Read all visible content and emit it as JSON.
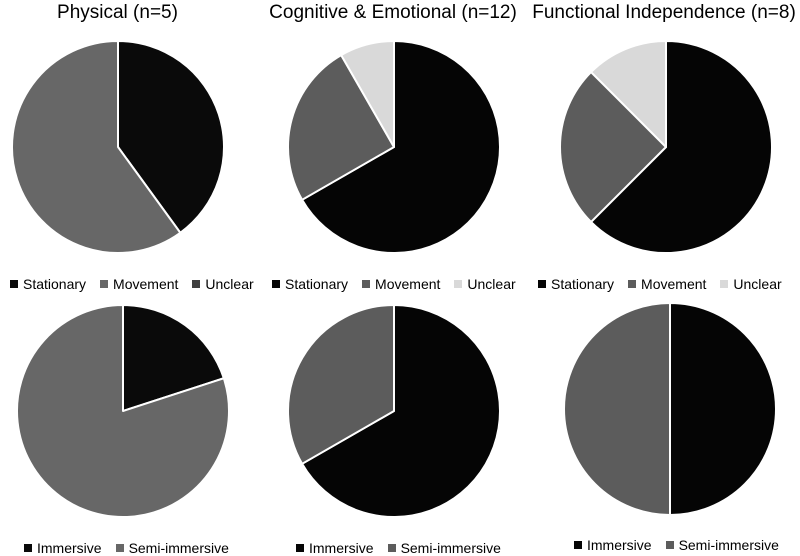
{
  "titles": [
    "Physical (n=5)",
    "Cognitive & Emotional (n=12)",
    "Functional Independence (n=8)"
  ],
  "chart_data": [
    {
      "type": "pie",
      "title": "Physical (n=5)",
      "categories": [
        "Stationary",
        "Movement",
        "Unclear"
      ],
      "values": [
        40,
        60,
        0
      ],
      "colors": [
        "#0a0a0a",
        "#676767",
        "#3f3f3f"
      ]
    },
    {
      "type": "pie",
      "title": "Cognitive & Emotional (n=12)",
      "categories": [
        "Stationary",
        "Movement",
        "Unclear"
      ],
      "values": [
        66.7,
        25,
        8.3
      ],
      "colors": [
        "#050505",
        "#5c5c5c",
        "#d9d9d9"
      ]
    },
    {
      "type": "pie",
      "title": "Functional Independence (n=8)",
      "categories": [
        "Stationary",
        "Movement",
        "Unclear"
      ],
      "values": [
        62.5,
        25,
        12.5
      ],
      "colors": [
        "#050505",
        "#5c5c5c",
        "#d9d9d9"
      ]
    },
    {
      "type": "pie",
      "categories": [
        "Immersive",
        "Semi-immersive"
      ],
      "values": [
        20,
        80
      ],
      "colors": [
        "#0a0a0a",
        "#676767"
      ]
    },
    {
      "type": "pie",
      "categories": [
        "Immersive",
        "Semi-immersive"
      ],
      "values": [
        66.7,
        33.3
      ],
      "colors": [
        "#050505",
        "#5c5c5c"
      ]
    },
    {
      "type": "pie",
      "categories": [
        "Immersive",
        "Semi-immersive"
      ],
      "values": [
        50,
        50
      ],
      "colors": [
        "#050505",
        "#5c5c5c"
      ]
    }
  ]
}
